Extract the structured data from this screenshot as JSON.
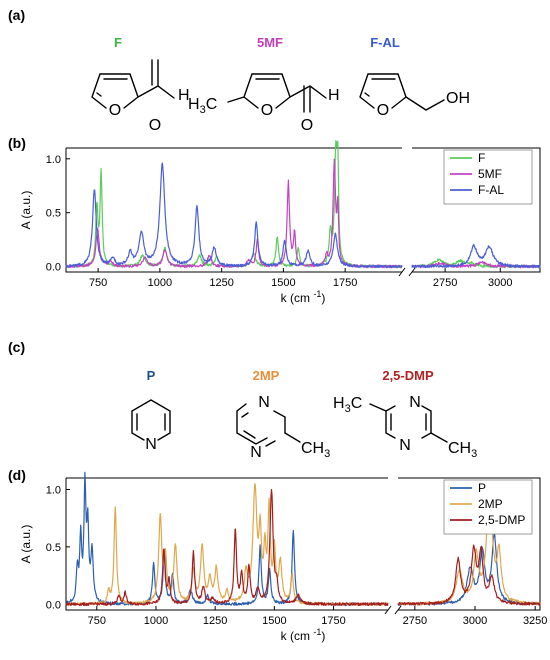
{
  "panels": {
    "a": {
      "label": "(a)"
    },
    "b": {
      "label": "(b)"
    },
    "c": {
      "label": "(c)"
    },
    "d": {
      "label": "(d)"
    }
  },
  "molecules_top": [
    {
      "name": "F",
      "color": "#3cb54a"
    },
    {
      "name": "5MF",
      "color": "#c13fb8"
    },
    {
      "name": "F-AL",
      "color": "#3a5bcf"
    }
  ],
  "molecules_bottom": [
    {
      "name": "P",
      "color": "#1f4e8c"
    },
    {
      "name": "2MP",
      "color": "#e8903a"
    },
    {
      "name": "2,5-DMP",
      "color": "#b22222"
    }
  ],
  "atoms": {
    "O": "O",
    "H": "H",
    "OH": "OH",
    "N": "N",
    "H3C_H": "H",
    "H3C_3": "3",
    "H3C_C": "C",
    "CH3_C": "CH",
    "CH3_3": "3"
  },
  "chart_data": [
    {
      "type": "line",
      "panel": "b",
      "ylabel": "A (a.u.)",
      "xlabel": "k (cm",
      "xlabel_sup": "-1",
      "xlabel_end": ")",
      "axis_break": true,
      "x_ranges": [
        [
          620,
          1980
        ],
        [
          2600,
          3180
        ]
      ],
      "ylim": [
        -0.05,
        1.1
      ],
      "yticks": [
        0.0,
        0.5,
        1.0
      ],
      "ytick_labels": [
        "0.0",
        "0.5",
        "1.0"
      ],
      "xticks": [
        750,
        1000,
        1250,
        1500,
        1750,
        2750,
        3000
      ],
      "xtick_labels": [
        "750",
        "1000",
        "1250",
        "1500",
        "1750",
        "2750",
        "3000"
      ],
      "legend": "top-right",
      "series": [
        {
          "name": "F",
          "color": "#5ccc5a",
          "peaks": [
            [
              745,
              0.55,
              5
            ],
            [
              762,
              0.86,
              5
            ],
            [
              930,
              0.1,
              12
            ],
            [
              1020,
              0.17,
              10
            ],
            [
              1160,
              0.1,
              10
            ],
            [
              1230,
              0.08,
              10
            ],
            [
              1380,
              0.12,
              10
            ],
            [
              1475,
              0.27,
              6
            ],
            [
              1560,
              0.18,
              6
            ],
            [
              1690,
              0.3,
              6
            ],
            [
              1712,
              0.99,
              6
            ],
            [
              1720,
              0.8,
              4
            ],
            [
              2720,
              0.06,
              25
            ],
            [
              2820,
              0.05,
              20
            ],
            [
              2870,
              0.03,
              20
            ]
          ]
        },
        {
          "name": "5MF",
          "color": "#c442c4",
          "peaks": [
            [
              748,
              0.35,
              8
            ],
            [
              800,
              0.05,
              10
            ],
            [
              940,
              0.08,
              12
            ],
            [
              1020,
              0.15,
              10
            ],
            [
              1200,
              0.1,
              10
            ],
            [
              1360,
              0.05,
              10
            ],
            [
              1395,
              0.25,
              6
            ],
            [
              1520,
              0.78,
              6
            ],
            [
              1545,
              0.3,
              5
            ],
            [
              1675,
              0.1,
              6
            ],
            [
              1706,
              0.95,
              6
            ],
            [
              1720,
              0.5,
              4
            ],
            [
              2730,
              0.03,
              25
            ],
            [
              2920,
              0.04,
              25
            ]
          ]
        },
        {
          "name": "F-AL",
          "color": "#4a5fd6",
          "peaks": [
            [
              735,
              0.72,
              9
            ],
            [
              810,
              0.07,
              10
            ],
            [
              880,
              0.12,
              10
            ],
            [
              925,
              0.3,
              12
            ],
            [
              1010,
              0.95,
              12
            ],
            [
              1150,
              0.56,
              9
            ],
            [
              1220,
              0.17,
              10
            ],
            [
              1390,
              0.4,
              8
            ],
            [
              1505,
              0.24,
              8
            ],
            [
              1600,
              0.14,
              10
            ],
            [
              1710,
              0.3,
              10
            ],
            [
              2880,
              0.18,
              18
            ],
            [
              2950,
              0.18,
              20
            ]
          ]
        }
      ]
    },
    {
      "type": "line",
      "panel": "d",
      "ylabel": "A (a.u.)",
      "xlabel": "k (cm",
      "xlabel_sup": "-1",
      "xlabel_end": ")",
      "axis_break": true,
      "x_ranges": [
        [
          620,
          1980
        ],
        [
          2680,
          3270
        ]
      ],
      "ylim": [
        -0.05,
        1.1
      ],
      "yticks": [
        0.0,
        0.5,
        1.0
      ],
      "ytick_labels": [
        "0.0",
        "0.5",
        "1.0"
      ],
      "xticks": [
        750,
        1000,
        1250,
        1500,
        1750,
        2750,
        3000,
        3250
      ],
      "xtick_labels": [
        "750",
        "1000",
        "1250",
        "1500",
        "1750",
        "2750",
        "3000",
        "3250"
      ],
      "legend": "top-right",
      "series": [
        {
          "name": "P",
          "color": "#2d5fb0",
          "peaks": [
            [
              668,
              0.3,
              5
            ],
            [
              682,
              0.55,
              5
            ],
            [
              700,
              0.99,
              5
            ],
            [
              712,
              0.62,
              5
            ],
            [
              730,
              0.45,
              6
            ],
            [
              990,
              0.35,
              6
            ],
            [
              1035,
              0.45,
              6
            ],
            [
              1070,
              0.25,
              6
            ],
            [
              1145,
              0.12,
              10
            ],
            [
              1218,
              0.08,
              8
            ],
            [
              1440,
              0.5,
              6
            ],
            [
              1480,
              0.3,
              6
            ],
            [
              1580,
              0.65,
              6
            ],
            [
              2980,
              0.3,
              15
            ],
            [
              3030,
              0.45,
              12
            ],
            [
              3080,
              0.58,
              12
            ]
          ]
        },
        {
          "name": "2MP",
          "color": "#e0a84e",
          "peaks": [
            [
              800,
              0.1,
              6
            ],
            [
              828,
              0.85,
              6
            ],
            [
              1018,
              0.75,
              8
            ],
            [
              1040,
              0.38,
              6
            ],
            [
              1082,
              0.5,
              8
            ],
            [
              1158,
              0.28,
              8
            ],
            [
              1195,
              0.5,
              8
            ],
            [
              1228,
              0.2,
              8
            ],
            [
              1255,
              0.3,
              8
            ],
            [
              1300,
              0.1,
              8
            ],
            [
              1380,
              0.25,
              8
            ],
            [
              1418,
              0.99,
              10
            ],
            [
              1440,
              0.55,
              6
            ],
            [
              1460,
              0.42,
              6
            ],
            [
              1478,
              0.8,
              6
            ],
            [
              1500,
              0.44,
              6
            ],
            [
              1525,
              0.35,
              8
            ],
            [
              1575,
              0.25,
              6
            ],
            [
              2935,
              0.28,
              15
            ],
            [
              3005,
              0.4,
              12
            ],
            [
              3060,
              0.99,
              14
            ],
            [
              3100,
              0.4,
              10
            ]
          ]
        },
        {
          "name": "2,5-DMP",
          "color": "#a51e1e",
          "peaks": [
            [
              843,
              0.08,
              6
            ],
            [
              870,
              0.1,
              6
            ],
            [
              1033,
              0.48,
              6
            ],
            [
              1055,
              0.2,
              6
            ],
            [
              1158,
              0.45,
              6
            ],
            [
              1200,
              0.15,
              8
            ],
            [
              1240,
              0.05,
              8
            ],
            [
              1335,
              0.64,
              6
            ],
            [
              1362,
              0.25,
              6
            ],
            [
              1393,
              0.32,
              6
            ],
            [
              1430,
              0.12,
              8
            ],
            [
              1488,
              0.99,
              8
            ],
            [
              1510,
              0.15,
              6
            ],
            [
              1600,
              0.08,
              10
            ],
            [
              2930,
              0.38,
              12
            ],
            [
              2995,
              0.45,
              12
            ],
            [
              3025,
              0.42,
              10
            ],
            [
              3070,
              0.22,
              12
            ]
          ]
        }
      ]
    }
  ]
}
